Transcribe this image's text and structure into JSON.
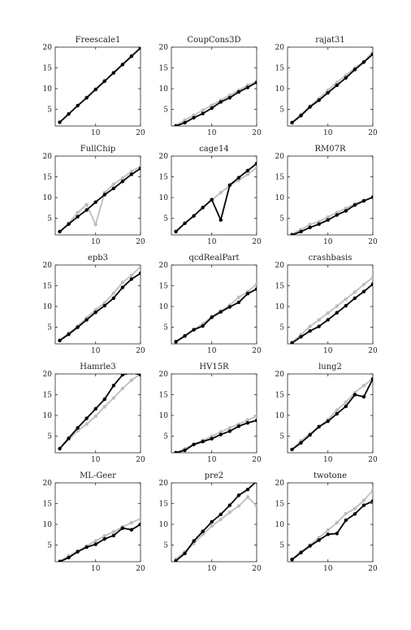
{
  "chart_data": [
    {
      "type": "line",
      "title": "Freescale1",
      "xlim": [
        1,
        20
      ],
      "ylim": [
        1,
        20
      ],
      "x": [
        2,
        4,
        6,
        8,
        10,
        12,
        14,
        16,
        18,
        20
      ],
      "xticks": [
        "10",
        "20"
      ],
      "yticks": [
        "5",
        "10",
        "15",
        "20"
      ],
      "colors": [
        "#000000",
        "#bdbdbd"
      ],
      "series": [
        {
          "values": [
            1.9,
            3.9,
            5.9,
            7.8,
            9.8,
            11.8,
            13.8,
            15.8,
            17.8,
            19.8
          ]
        },
        {
          "values": [
            1.9,
            3.9,
            5.9,
            7.9,
            9.9,
            11.9,
            13.9,
            15.9,
            17.9,
            19.9
          ]
        }
      ]
    },
    {
      "type": "line",
      "title": "CoupCons3D",
      "xlim": [
        1,
        20
      ],
      "ylim": [
        1,
        20
      ],
      "x": [
        2,
        4,
        6,
        8,
        10,
        12,
        14,
        16,
        18,
        20
      ],
      "xticks": [
        "10",
        "20"
      ],
      "yticks": [
        "5",
        "10",
        "15",
        "20"
      ],
      "colors": [
        "#000000",
        "#bdbdbd"
      ],
      "series": [
        {
          "values": [
            1.0,
            1.8,
            3.0,
            4.0,
            5.3,
            6.8,
            7.8,
            9.2,
            10.3,
            11.5
          ]
        },
        {
          "values": [
            1.2,
            2.4,
            3.6,
            4.8,
            6.0,
            7.2,
            8.4,
            9.6,
            10.8,
            11.7
          ]
        }
      ]
    },
    {
      "type": "line",
      "title": "rajat31",
      "xlim": [
        1,
        20
      ],
      "ylim": [
        1,
        20
      ],
      "x": [
        2,
        4,
        6,
        8,
        10,
        12,
        14,
        16,
        18,
        20
      ],
      "xticks": [
        "10",
        "20"
      ],
      "yticks": [
        "5",
        "10",
        "15",
        "20"
      ],
      "colors": [
        "#000000",
        "#bdbdbd"
      ],
      "series": [
        {
          "values": [
            1.8,
            3.5,
            5.6,
            7.2,
            9.0,
            10.8,
            12.6,
            14.6,
            16.4,
            18.3
          ]
        },
        {
          "values": [
            1.9,
            3.8,
            5.8,
            7.6,
            9.6,
            11.5,
            13.2,
            15.0,
            16.5,
            18.9
          ]
        }
      ]
    },
    {
      "type": "line",
      "title": "FullChip",
      "xlim": [
        1,
        20
      ],
      "ylim": [
        1,
        20
      ],
      "x": [
        2,
        4,
        6,
        8,
        10,
        12,
        14,
        16,
        18,
        20
      ],
      "xticks": [
        "10",
        "20"
      ],
      "yticks": [
        "5",
        "10",
        "15",
        "20"
      ],
      "colors": [
        "#000000",
        "#bdbdbd"
      ],
      "series": [
        {
          "values": [
            1.8,
            3.6,
            5.4,
            7.0,
            8.9,
            10.7,
            12.2,
            13.9,
            15.6,
            17.0
          ]
        },
        {
          "values": [
            1.8,
            3.8,
            6.4,
            8.3,
            3.5,
            11.2,
            13.2,
            14.7,
            16.3,
            17.5
          ]
        }
      ]
    },
    {
      "type": "line",
      "title": "cage14",
      "xlim": [
        1,
        20
      ],
      "ylim": [
        1,
        20
      ],
      "x": [
        2,
        4,
        6,
        8,
        10,
        12,
        14,
        16,
        18,
        20
      ],
      "xticks": [
        "10",
        "20"
      ],
      "yticks": [
        "5",
        "10",
        "15",
        "20"
      ],
      "colors": [
        "#000000",
        "#bdbdbd"
      ],
      "series": [
        {
          "values": [
            1.8,
            3.8,
            5.6,
            7.6,
            9.5,
            4.6,
            13.0,
            14.8,
            16.5,
            18.2
          ]
        },
        {
          "values": [
            1.9,
            3.8,
            5.6,
            7.5,
            9.4,
            11.2,
            12.9,
            14.2,
            15.6,
            17.2
          ]
        }
      ]
    },
    {
      "type": "line",
      "title": "RM07R",
      "xlim": [
        1,
        20
      ],
      "ylim": [
        1,
        20
      ],
      "x": [
        2,
        4,
        6,
        8,
        10,
        12,
        14,
        16,
        18,
        20
      ],
      "xticks": [
        "10",
        "20"
      ],
      "yticks": [
        "5",
        "10",
        "15",
        "20"
      ],
      "colors": [
        "#000000",
        "#bdbdbd"
      ],
      "series": [
        {
          "values": [
            1.0,
            1.8,
            2.8,
            3.6,
            4.6,
            5.8,
            6.8,
            8.2,
            9.2,
            10.1
          ]
        },
        {
          "values": [
            1.2,
            2.3,
            3.5,
            4.2,
            5.3,
            6.4,
            7.4,
            8.5,
            9.3,
            10.0
          ]
        }
      ]
    },
    {
      "type": "line",
      "title": "epb3",
      "xlim": [
        1,
        20
      ],
      "ylim": [
        1,
        20
      ],
      "x": [
        2,
        4,
        6,
        8,
        10,
        12,
        14,
        16,
        18,
        20
      ],
      "xticks": [
        "10",
        "20"
      ],
      "yticks": [
        "5",
        "10",
        "15",
        "20"
      ],
      "colors": [
        "#000000",
        "#bdbdbd"
      ],
      "series": [
        {
          "values": [
            1.8,
            3.3,
            5.0,
            6.8,
            8.6,
            10.2,
            12.0,
            14.6,
            16.6,
            18.0
          ]
        },
        {
          "values": [
            1.9,
            3.6,
            5.3,
            7.3,
            9.2,
            10.9,
            13.2,
            15.8,
            17.5,
            19.6
          ]
        }
      ]
    },
    {
      "type": "line",
      "title": "qcdRealPart",
      "xlim": [
        1,
        20
      ],
      "ylim": [
        1,
        20
      ],
      "x": [
        2,
        4,
        6,
        8,
        10,
        12,
        14,
        16,
        18,
        20
      ],
      "xticks": [
        "10",
        "20"
      ],
      "yticks": [
        "5",
        "10",
        "15",
        "20"
      ],
      "colors": [
        "#000000",
        "#bdbdbd"
      ],
      "series": [
        {
          "values": [
            1.5,
            2.9,
            4.4,
            5.3,
            7.4,
            8.7,
            9.9,
            11.0,
            13.1,
            14.2
          ]
        },
        {
          "values": [
            1.6,
            3.0,
            4.5,
            5.8,
            7.6,
            8.9,
            10.3,
            12.2,
            13.6,
            15.4
          ]
        }
      ]
    },
    {
      "type": "line",
      "title": "crashbasis",
      "xlim": [
        1,
        20
      ],
      "ylim": [
        1,
        20
      ],
      "x": [
        2,
        4,
        6,
        8,
        10,
        12,
        14,
        16,
        18,
        20
      ],
      "xticks": [
        "10",
        "20"
      ],
      "yticks": [
        "5",
        "10",
        "15",
        "20"
      ],
      "colors": [
        "#000000",
        "#bdbdbd"
      ],
      "series": [
        {
          "values": [
            1.2,
            2.7,
            4.1,
            5.2,
            6.8,
            8.5,
            10.2,
            12.0,
            13.6,
            15.4
          ]
        },
        {
          "values": [
            1.4,
            3.2,
            5.2,
            6.8,
            8.4,
            10.1,
            11.8,
            13.5,
            15.3,
            17.0
          ]
        }
      ]
    },
    {
      "type": "line",
      "title": "Hamrle3",
      "xlim": [
        1,
        20
      ],
      "ylim": [
        1,
        20
      ],
      "x": [
        2,
        4,
        6,
        8,
        10,
        12,
        14,
        16,
        18,
        20
      ],
      "xticks": [
        "10",
        "20"
      ],
      "yticks": [
        "5",
        "10",
        "15",
        "20"
      ],
      "colors": [
        "#000000",
        "#bdbdbd"
      ],
      "series": [
        {
          "values": [
            2.0,
            4.5,
            7.0,
            9.3,
            11.6,
            13.9,
            17.2,
            19.8,
            20.3,
            19.8
          ]
        },
        {
          "values": [
            2.0,
            4.2,
            6.3,
            7.9,
            9.8,
            12.1,
            14.2,
            16.5,
            18.5,
            20.0
          ]
        }
      ]
    },
    {
      "type": "line",
      "title": "HV15R",
      "xlim": [
        1,
        20
      ],
      "ylim": [
        1,
        20
      ],
      "x": [
        2,
        4,
        6,
        8,
        10,
        12,
        14,
        16,
        18,
        20
      ],
      "xticks": [
        "10",
        "20"
      ],
      "yticks": [
        "5",
        "10",
        "15",
        "20"
      ],
      "colors": [
        "#000000",
        "#bdbdbd"
      ],
      "series": [
        {
          "values": [
            1.0,
            1.6,
            3.0,
            3.7,
            4.4,
            5.4,
            6.2,
            7.4,
            8.2,
            8.8
          ]
        },
        {
          "values": [
            1.1,
            2.0,
            3.1,
            4.0,
            5.0,
            6.0,
            7.0,
            7.9,
            8.9,
            9.8
          ]
        }
      ]
    },
    {
      "type": "line",
      "title": "lung2",
      "xlim": [
        1,
        20
      ],
      "ylim": [
        1,
        20
      ],
      "x": [
        2,
        4,
        6,
        8,
        10,
        12,
        14,
        16,
        18,
        20
      ],
      "xticks": [
        "10",
        "20"
      ],
      "yticks": [
        "5",
        "10",
        "15",
        "20"
      ],
      "colors": [
        "#000000",
        "#bdbdbd"
      ],
      "series": [
        {
          "values": [
            1.8,
            3.4,
            5.3,
            7.3,
            8.6,
            10.4,
            12.2,
            15.0,
            14.5,
            18.8
          ]
        },
        {
          "values": [
            1.8,
            3.9,
            5.6,
            7.2,
            9.0,
            11.3,
            13.2,
            15.5,
            17.2,
            18.9
          ]
        }
      ]
    },
    {
      "type": "line",
      "title": "ML-Geer",
      "xlim": [
        1,
        20
      ],
      "ylim": [
        1,
        20
      ],
      "x": [
        2,
        4,
        6,
        8,
        10,
        12,
        14,
        16,
        18,
        20
      ],
      "xticks": [
        "10",
        "20"
      ],
      "yticks": [
        "5",
        "10",
        "15",
        "20"
      ],
      "colors": [
        "#000000",
        "#bdbdbd"
      ],
      "series": [
        {
          "values": [
            1.0,
            2.0,
            3.4,
            4.5,
            5.2,
            6.5,
            7.3,
            9.1,
            8.7,
            10.0
          ]
        },
        {
          "values": [
            1.2,
            2.4,
            3.6,
            4.8,
            6.0,
            7.2,
            8.2,
            9.4,
            10.4,
            11.4
          ]
        }
      ]
    },
    {
      "type": "line",
      "title": "pre2",
      "xlim": [
        1,
        20
      ],
      "ylim": [
        1,
        20
      ],
      "x": [
        2,
        4,
        6,
        8,
        10,
        12,
        14,
        16,
        18,
        20
      ],
      "xticks": [
        "10",
        "20"
      ],
      "yticks": [
        "5",
        "10",
        "15",
        "20"
      ],
      "colors": [
        "#000000",
        "#bdbdbd"
      ],
      "series": [
        {
          "values": [
            1.2,
            3.0,
            6.0,
            8.3,
            10.6,
            12.4,
            14.6,
            17.0,
            18.4,
            20.4
          ]
        },
        {
          "values": [
            1.6,
            3.4,
            5.4,
            7.6,
            9.6,
            11.2,
            12.9,
            14.4,
            16.6,
            14.4
          ]
        }
      ]
    },
    {
      "type": "line",
      "title": "twotone",
      "xlim": [
        1,
        20
      ],
      "ylim": [
        1,
        20
      ],
      "x": [
        2,
        4,
        6,
        8,
        10,
        12,
        14,
        16,
        18,
        20
      ],
      "xticks": [
        "10",
        "20"
      ],
      "yticks": [
        "5",
        "10",
        "15",
        "20"
      ],
      "colors": [
        "#000000",
        "#bdbdbd"
      ],
      "series": [
        {
          "values": [
            1.5,
            3.2,
            4.8,
            6.2,
            7.6,
            7.8,
            11.0,
            12.5,
            14.6,
            15.6
          ]
        },
        {
          "values": [
            1.7,
            3.4,
            5.0,
            6.8,
            8.6,
            10.4,
            12.6,
            13.8,
            15.8,
            18.2
          ]
        }
      ]
    }
  ]
}
